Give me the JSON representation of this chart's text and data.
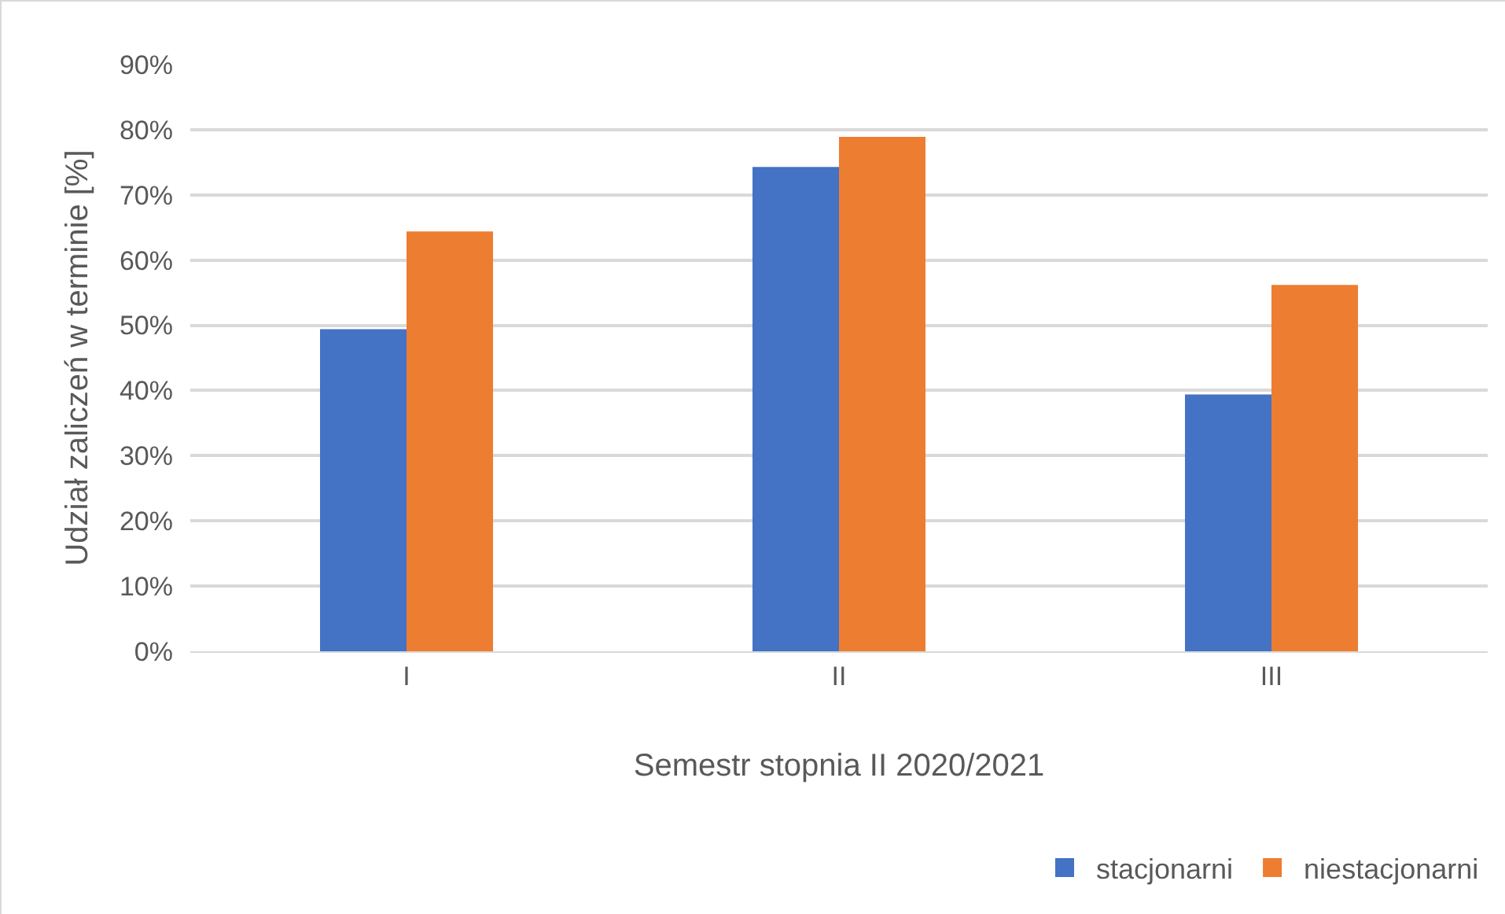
{
  "chart_data": {
    "type": "bar",
    "xlabel": "Semestr stopnia II 2020/2021",
    "ylabel": "Udział zaliczeń w terminie [%]",
    "categories": [
      "I",
      "II",
      "III"
    ],
    "series": [
      {
        "name": "stacjonarni",
        "color": "#4472c4",
        "values": [
          49.4,
          74.3,
          39.4
        ]
      },
      {
        "name": "niestacjonarni",
        "color": "#ed7d31",
        "values": [
          64.4,
          78.9,
          56.2
        ]
      }
    ],
    "ylim": [
      0,
      90
    ],
    "yticks": [
      {
        "value": 0,
        "label": "0%"
      },
      {
        "value": 10,
        "label": "10%"
      },
      {
        "value": 20,
        "label": "20%"
      },
      {
        "value": 30,
        "label": "30%"
      },
      {
        "value": 40,
        "label": "40%"
      },
      {
        "value": 50,
        "label": "50%"
      },
      {
        "value": 60,
        "label": "60%"
      },
      {
        "value": 70,
        "label": "70%"
      },
      {
        "value": 80,
        "label": "80%"
      },
      {
        "value": 90,
        "label": "90%"
      }
    ],
    "grid": "y",
    "legend": "bottom right"
  }
}
